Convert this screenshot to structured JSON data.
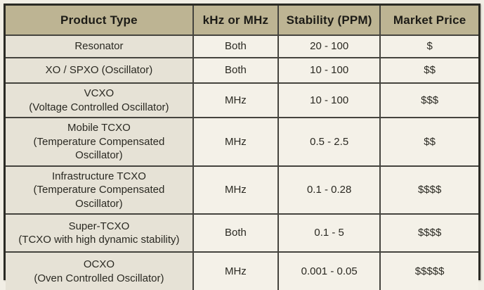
{
  "chart_data": {
    "type": "table",
    "columns": [
      "Product Type",
      "kHz or MHz",
      "Stability (PPM)",
      "Market Price"
    ],
    "rows": [
      {
        "product": "Resonator",
        "product_detail": "",
        "khz_or_mhz": "Both",
        "stability_ppm": "20 - 100",
        "market_price": "$"
      },
      {
        "product": "XO / SPXO  (Oscillator)",
        "product_detail": "",
        "khz_or_mhz": "Both",
        "stability_ppm": "10 - 100",
        "market_price": "$$"
      },
      {
        "product": "VCXO",
        "product_detail": "(Voltage Controlled Oscillator)",
        "khz_or_mhz": "MHz",
        "stability_ppm": "10 - 100",
        "market_price": "$$$"
      },
      {
        "product": "Mobile TCXO",
        "product_detail": "(Temperature Compensated Oscillator)",
        "khz_or_mhz": "MHz",
        "stability_ppm": "0.5 - 2.5",
        "market_price": "$$"
      },
      {
        "product": "Infrastructure TCXO",
        "product_detail": "(Temperature Compensated Oscillator)",
        "khz_or_mhz": "MHz",
        "stability_ppm": "0.1 - 0.28",
        "market_price": "$$$$"
      },
      {
        "product": "Super-TCXO",
        "product_detail": "(TCXO with high dynamic stability)",
        "khz_or_mhz": "Both",
        "stability_ppm": "0.1 - 5",
        "market_price": "$$$$"
      },
      {
        "product": "OCXO",
        "product_detail": "(Oven Controlled Oscillator)",
        "khz_or_mhz": "MHz",
        "stability_ppm": "0.001 - 0.05",
        "market_price": "$$$$$"
      }
    ]
  },
  "colors": {
    "header_bg": "#bdb493",
    "product_column_bg": "#e6e2d6",
    "cell_bg": "#f4f1e8",
    "grid_line": "#45443e",
    "outer_border": "#2a2a24",
    "text": "#2a2922"
  }
}
